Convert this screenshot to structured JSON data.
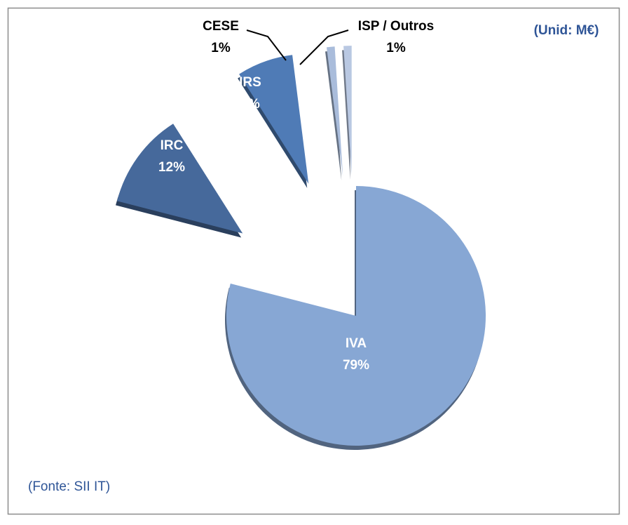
{
  "chart_data": {
    "type": "pie",
    "categories": [
      "IVA",
      "IRC",
      "IRS",
      "CESE",
      "ISP / Outros"
    ],
    "values": [
      79,
      12,
      7,
      1,
      1
    ],
    "value_labels": [
      "79%",
      "12%",
      "7%",
      "1%",
      "1%"
    ],
    "colors": [
      "#87a7d4",
      "#46699b",
      "#4f7bb6",
      "#a9bcdb",
      "#b9c8e2"
    ],
    "annotations": [
      "(Unid: M€)",
      "(Fonte: SII IT)"
    ]
  }
}
